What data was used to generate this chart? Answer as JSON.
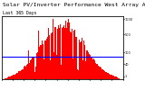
{
  "title": "Solar PV/Inverter Performance West Array Actual & Average Power Output",
  "subtitle": "Last 365 Days",
  "bg_color": "#ffffff",
  "plot_bg_color": "#ffffff",
  "bar_color": "#ff0000",
  "bar_edge_color": "#cc0000",
  "avg_line_color": "#0000ff",
  "avg_line_value": 0.38,
  "ylim": [
    0,
    1.0
  ],
  "ytick_labels": [
    "1000",
    "500",
    "100",
    "40",
    "1"
  ],
  "ytick_values": [
    1.0,
    0.75,
    0.45,
    0.25,
    0.05
  ],
  "grid_color": "#cccccc",
  "title_fontsize": 4.5,
  "subtitle_fontsize": 3.5,
  "num_bars": 365,
  "envelope_shape": "seasonal_bell"
}
